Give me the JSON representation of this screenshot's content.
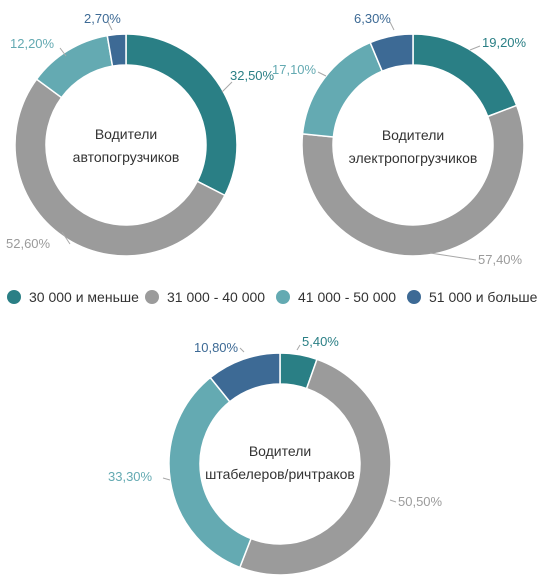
{
  "colors": {
    "le30": "#2a7f85",
    "s31_40": "#9b9b9b",
    "s41_50": "#64aab2",
    "ge51": "#3d6a95"
  },
  "legend": [
    {
      "label": "30 000 и меньше",
      "color_key": "le30"
    },
    {
      "label": "31 000 - 40 000",
      "color_key": "s31_40"
    },
    {
      "label": "41 000 - 50 000",
      "color_key": "s41_50"
    },
    {
      "label": "51 000 и больше",
      "color_key": "ge51"
    }
  ],
  "chart_data": [
    {
      "type": "pie",
      "title_lines": [
        "Водители",
        "автопогрузчиков"
      ],
      "categories": [
        "30 000 и меньше",
        "31 000 - 40 000",
        "41 000 - 50 000",
        "51 000 и больше"
      ],
      "values": [
        32.5,
        52.6,
        12.2,
        2.7
      ],
      "labels": [
        "32,50%",
        "52,60%",
        "12,20%",
        "2,70%"
      ]
    },
    {
      "type": "pie",
      "title_lines": [
        "Водители",
        "электропогрузчиков"
      ],
      "categories": [
        "30 000 и меньше",
        "31 000 - 40 000",
        "41 000 - 50 000",
        "51 000 и больше"
      ],
      "values": [
        19.2,
        57.4,
        17.1,
        6.3
      ],
      "labels": [
        "19,20%",
        "57,40%",
        "17,10%",
        "6,30%"
      ]
    },
    {
      "type": "pie",
      "title_lines": [
        "Водители",
        "штабелеров/ричтраков"
      ],
      "categories": [
        "30 000 и меньше",
        "31 000 - 40 000",
        "41 000 - 50 000",
        "51 000 и больше"
      ],
      "values": [
        5.4,
        50.5,
        33.3,
        10.8
      ],
      "labels": [
        "5,40%",
        "50,50%",
        "33,30%",
        "10,80%"
      ]
    }
  ]
}
